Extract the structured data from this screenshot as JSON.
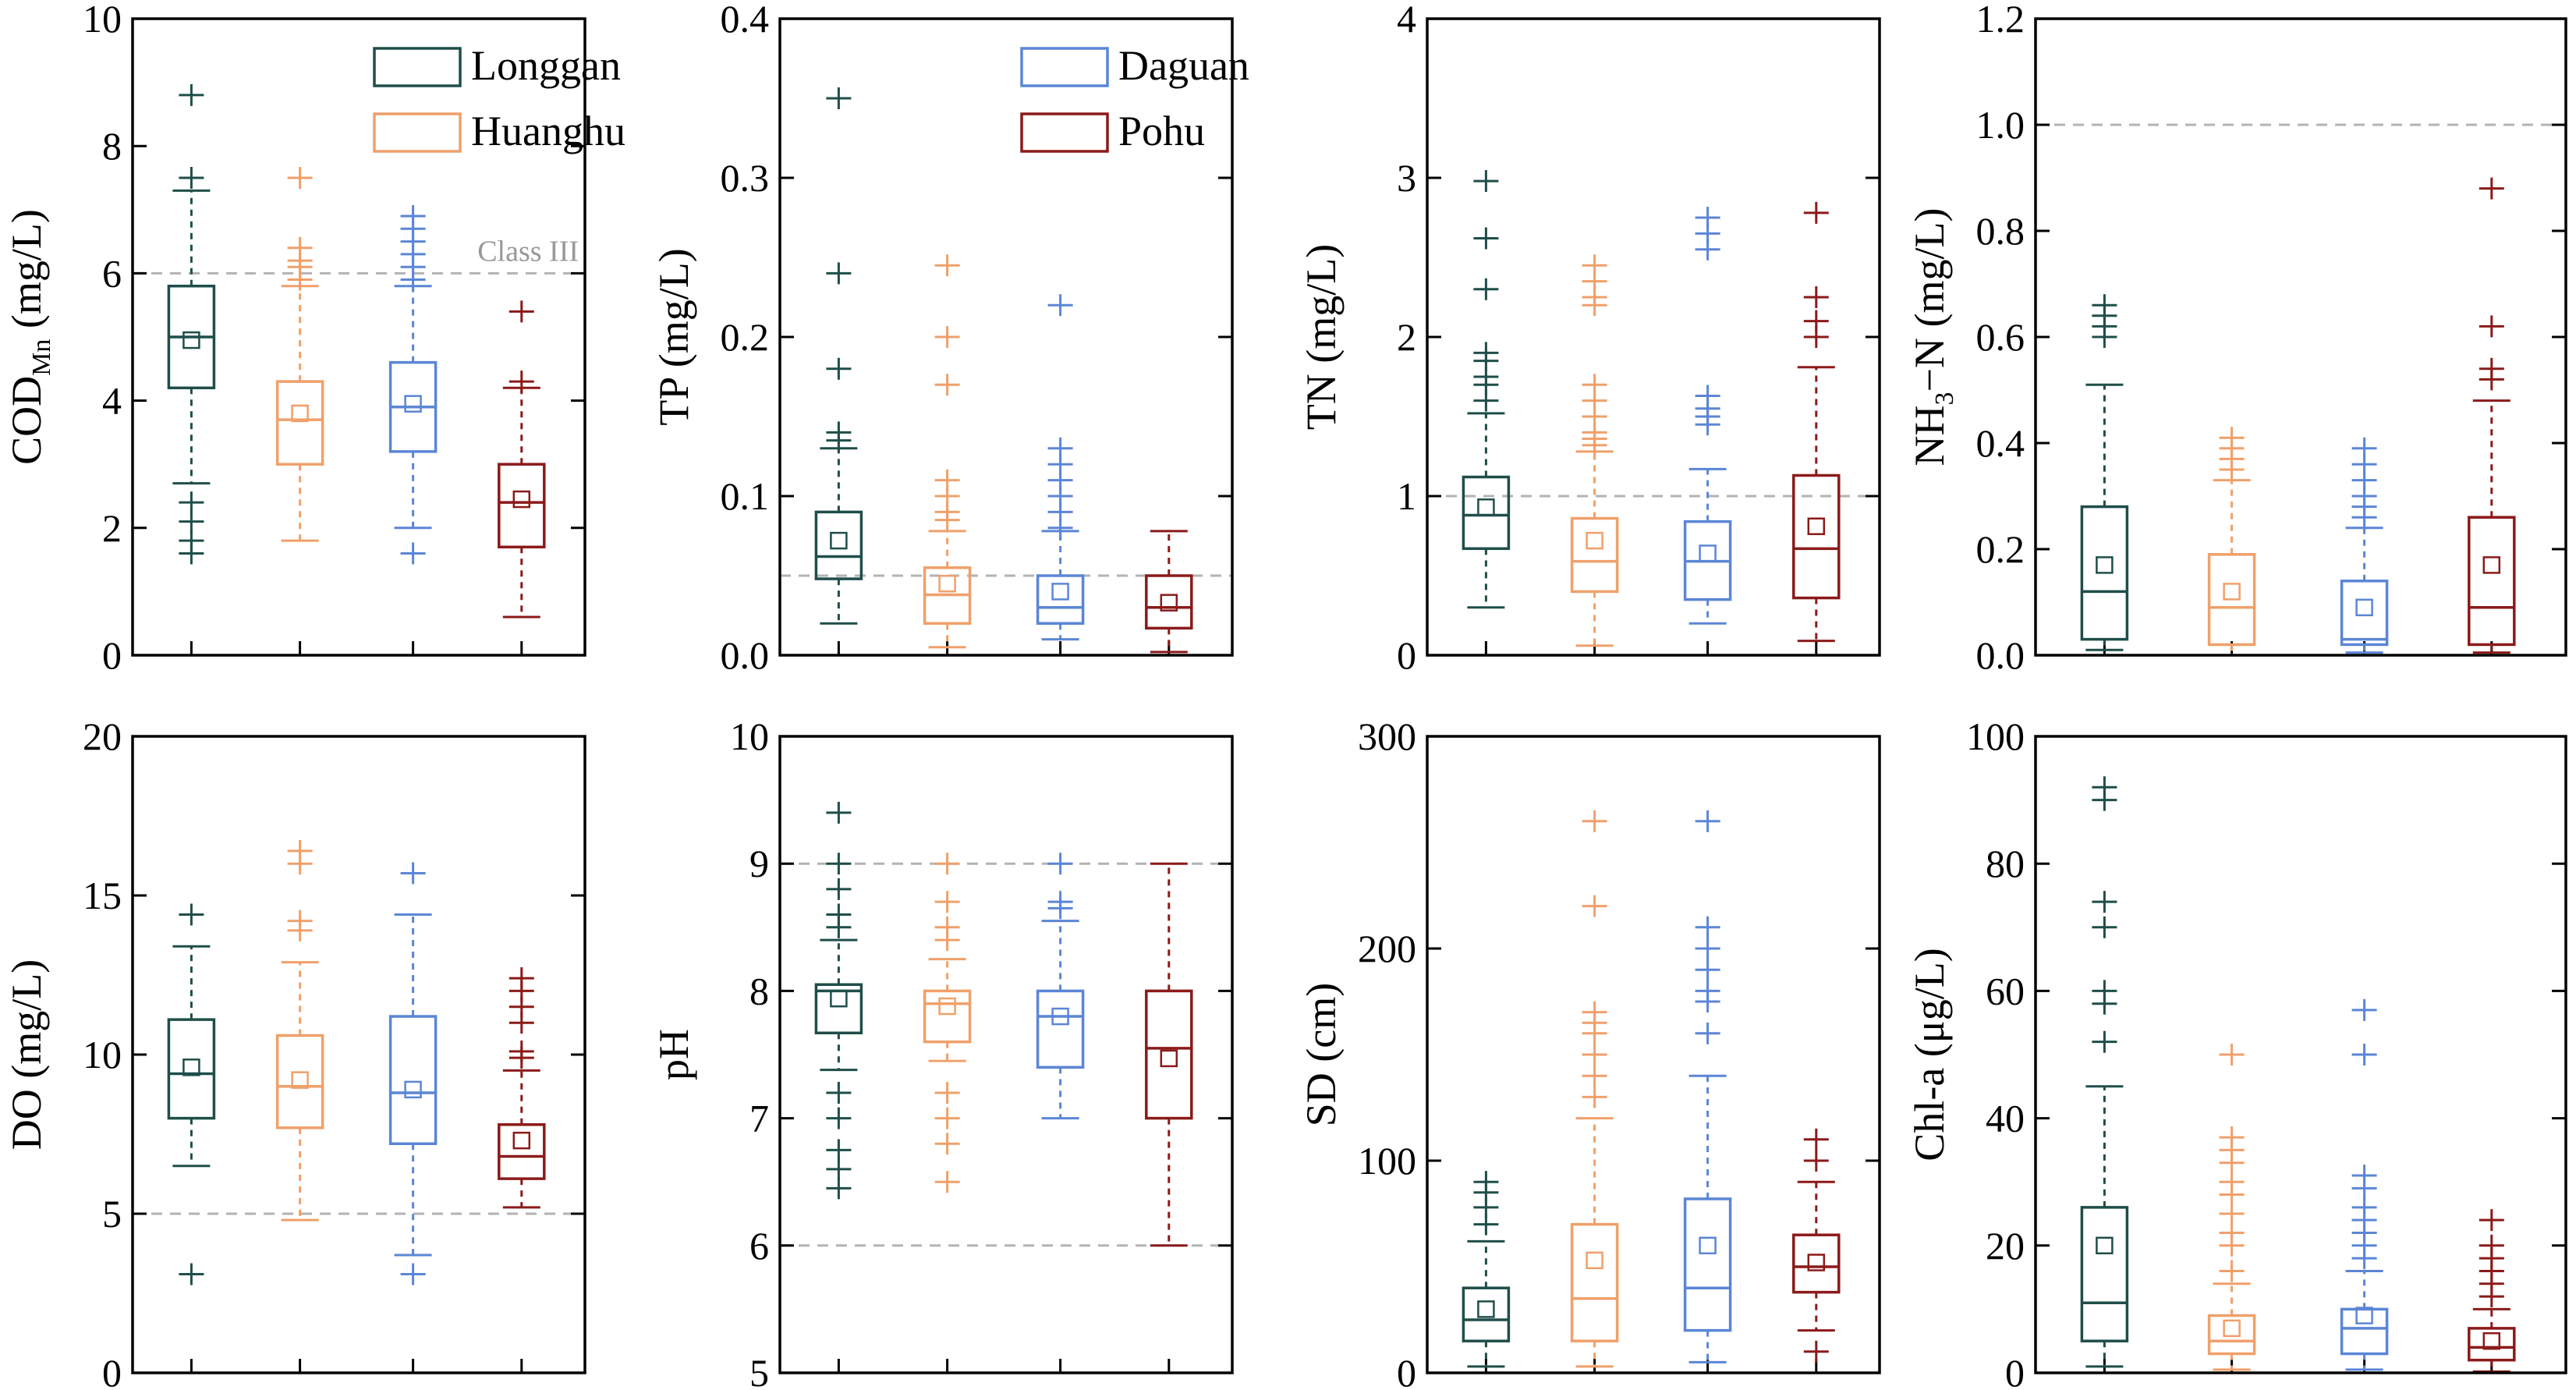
{
  "legend_items": [
    {
      "label": "Longgan",
      "color": "#1f4e4a"
    },
    {
      "label": "Huanghu",
      "color": "#f0a06a"
    },
    {
      "label": "Daguan",
      "color": "#5b86d6"
    },
    {
      "label": "Pohu",
      "color": "#8b1a1a"
    }
  ],
  "chart_data": [
    {
      "type": "box",
      "ylabel_main": "COD",
      "ylabel_sub": "Mn",
      "ylabel_tail": " (mg/L)",
      "ylim": [
        0,
        10
      ],
      "yticks": [
        0,
        2,
        4,
        6,
        8,
        10
      ],
      "tick_labels": [
        "0",
        "2",
        "4",
        "6",
        "8",
        "10"
      ],
      "threshold_lines": [
        6
      ],
      "threshold_label": "Class III",
      "legend": [
        0,
        1
      ],
      "series": [
        {
          "name": "Longgan",
          "q1": 4.2,
          "median": 5.0,
          "q3": 5.8,
          "mean": 4.95,
          "whisker_low": 2.7,
          "whisker_high": 7.3,
          "outliers": [
            1.6,
            1.8,
            2.1,
            2.4,
            7.5,
            8.8
          ]
        },
        {
          "name": "Huanghu",
          "q1": 3.0,
          "median": 3.7,
          "q3": 4.3,
          "mean": 3.8,
          "whisker_low": 1.8,
          "whisker_high": 5.8,
          "outliers": [
            5.9,
            6.1,
            6.2,
            6.4,
            7.5
          ]
        },
        {
          "name": "Daguan",
          "q1": 3.2,
          "median": 3.9,
          "q3": 4.6,
          "mean": 3.95,
          "whisker_low": 2.0,
          "whisker_high": 5.8,
          "outliers": [
            1.6,
            5.9,
            6.1,
            6.3,
            6.5,
            6.7,
            6.9
          ]
        },
        {
          "name": "Pohu",
          "q1": 1.7,
          "median": 2.4,
          "q3": 3.0,
          "mean": 2.45,
          "whisker_low": 0.6,
          "whisker_high": 4.2,
          "outliers": [
            4.3,
            5.4
          ]
        }
      ]
    },
    {
      "type": "box",
      "ylabel_main": "TP (mg/L)",
      "ylim": [
        0,
        0.4
      ],
      "yticks": [
        0,
        0.1,
        0.2,
        0.3,
        0.4
      ],
      "tick_labels": [
        "0.0",
        "0.1",
        "0.2",
        "0.3",
        "0.4"
      ],
      "threshold_lines": [
        0.05
      ],
      "legend": [
        2,
        3
      ],
      "series": [
        {
          "name": "Longgan",
          "q1": 0.048,
          "median": 0.062,
          "q3": 0.09,
          "mean": 0.072,
          "whisker_low": 0.02,
          "whisker_high": 0.13,
          "outliers": [
            0.135,
            0.14,
            0.18,
            0.24,
            0.35
          ]
        },
        {
          "name": "Huanghu",
          "q1": 0.02,
          "median": 0.038,
          "q3": 0.055,
          "mean": 0.045,
          "whisker_low": 0.005,
          "whisker_high": 0.078,
          "outliers": [
            0.085,
            0.09,
            0.1,
            0.11,
            0.17,
            0.2,
            0.245
          ]
        },
        {
          "name": "Daguan",
          "q1": 0.02,
          "median": 0.03,
          "q3": 0.05,
          "mean": 0.04,
          "whisker_low": 0.01,
          "whisker_high": 0.078,
          "outliers": [
            0.08,
            0.09,
            0.1,
            0.11,
            0.12,
            0.13,
            0.22
          ]
        },
        {
          "name": "Pohu",
          "q1": 0.017,
          "median": 0.03,
          "q3": 0.05,
          "mean": 0.033,
          "whisker_low": 0.002,
          "whisker_high": 0.078,
          "outliers": []
        }
      ]
    },
    {
      "type": "box",
      "ylabel_main": "TN (mg/L)",
      "ylim": [
        0,
        4
      ],
      "yticks": [
        0,
        1,
        2,
        3,
        4
      ],
      "tick_labels": [
        "0",
        "1",
        "2",
        "3",
        "4"
      ],
      "threshold_lines": [
        1
      ],
      "legend": [],
      "series": [
        {
          "name": "Longgan",
          "q1": 0.67,
          "median": 0.88,
          "q3": 1.12,
          "mean": 0.93,
          "whisker_low": 0.3,
          "whisker_high": 1.52,
          "outliers": [
            1.6,
            1.7,
            1.75,
            1.85,
            1.9,
            2.3,
            2.62,
            2.98
          ]
        },
        {
          "name": "Huanghu",
          "q1": 0.4,
          "median": 0.59,
          "q3": 0.86,
          "mean": 0.72,
          "whisker_low": 0.06,
          "whisker_high": 1.28,
          "outliers": [
            1.32,
            1.36,
            1.4,
            1.5,
            1.6,
            1.7,
            2.2,
            2.25,
            2.35,
            2.45
          ]
        },
        {
          "name": "Daguan",
          "q1": 0.35,
          "median": 0.59,
          "q3": 0.84,
          "mean": 0.64,
          "whisker_low": 0.2,
          "whisker_high": 1.17,
          "outliers": [
            1.45,
            1.5,
            1.55,
            1.63,
            2.55,
            2.65,
            2.75
          ]
        },
        {
          "name": "Pohu",
          "q1": 0.36,
          "median": 0.67,
          "q3": 1.13,
          "mean": 0.81,
          "whisker_low": 0.09,
          "whisker_high": 1.81,
          "outliers": [
            2.0,
            2.1,
            2.25,
            2.78
          ]
        }
      ]
    },
    {
      "type": "box",
      "ylabel_main": "NH",
      "ylabel_sub": "3",
      "ylabel_tail": "−N (mg/L)",
      "ylim": [
        0,
        1.2
      ],
      "yticks": [
        0,
        0.2,
        0.4,
        0.6,
        0.8,
        1.0,
        1.2
      ],
      "tick_labels": [
        "0.0",
        "0.2",
        "0.4",
        "0.6",
        "0.8",
        "1.0",
        "1.2"
      ],
      "threshold_lines": [
        1.0
      ],
      "legend": [],
      "series": [
        {
          "name": "Longgan",
          "q1": 0.03,
          "median": 0.12,
          "q3": 0.28,
          "mean": 0.17,
          "whisker_low": 0.01,
          "whisker_high": 0.51,
          "outliers": [
            0.6,
            0.62,
            0.64,
            0.66
          ]
        },
        {
          "name": "Huanghu",
          "q1": 0.02,
          "median": 0.09,
          "q3": 0.19,
          "mean": 0.12,
          "whisker_low": 0.0,
          "whisker_high": 0.33,
          "outliers": [
            0.35,
            0.37,
            0.39,
            0.41
          ]
        },
        {
          "name": "Daguan",
          "q1": 0.02,
          "median": 0.03,
          "q3": 0.14,
          "mean": 0.09,
          "whisker_low": 0.005,
          "whisker_high": 0.24,
          "outliers": [
            0.26,
            0.28,
            0.3,
            0.33,
            0.36,
            0.39
          ]
        },
        {
          "name": "Pohu",
          "q1": 0.02,
          "median": 0.09,
          "q3": 0.26,
          "mean": 0.17,
          "whisker_low": 0.005,
          "whisker_high": 0.48,
          "outliers": [
            0.52,
            0.54,
            0.62,
            0.88
          ]
        }
      ]
    },
    {
      "type": "box",
      "ylabel_main": "DO (mg/L)",
      "ylim": [
        0,
        20
      ],
      "yticks": [
        0,
        5,
        10,
        15,
        20
      ],
      "tick_labels": [
        "0",
        "5",
        "10",
        "15",
        "20"
      ],
      "threshold_lines": [
        5
      ],
      "legend": [],
      "series": [
        {
          "name": "Longgan",
          "q1": 8.0,
          "median": 9.4,
          "q3": 11.1,
          "mean": 9.6,
          "whisker_low": 6.5,
          "whisker_high": 13.4,
          "outliers": [
            3.1,
            14.4
          ]
        },
        {
          "name": "Huanghu",
          "q1": 7.7,
          "median": 9.0,
          "q3": 10.6,
          "mean": 9.2,
          "whisker_low": 4.8,
          "whisker_high": 12.9,
          "outliers": [
            13.9,
            14.2,
            16.0,
            16.4
          ]
        },
        {
          "name": "Daguan",
          "q1": 7.2,
          "median": 8.8,
          "q3": 11.2,
          "mean": 8.9,
          "whisker_low": 3.7,
          "whisker_high": 14.4,
          "outliers": [
            3.1,
            15.7
          ]
        },
        {
          "name": "Pohu",
          "q1": 6.1,
          "median": 6.8,
          "q3": 7.8,
          "mean": 7.3,
          "whisker_low": 5.2,
          "whisker_high": 9.5,
          "outliers": [
            9.9,
            10.1,
            11.0,
            11.5,
            12.0,
            12.4
          ]
        }
      ]
    },
    {
      "type": "box",
      "ylabel_main": "pH",
      "ylim": [
        5,
        10
      ],
      "yticks": [
        5,
        6,
        7,
        8,
        9,
        10
      ],
      "tick_labels": [
        "5",
        "6",
        "7",
        "8",
        "9",
        "10"
      ],
      "threshold_lines": [
        6,
        9
      ],
      "legend": [],
      "series": [
        {
          "name": "Longgan",
          "q1": 7.67,
          "median": 8.0,
          "q3": 8.05,
          "mean": 7.94,
          "whisker_low": 7.38,
          "whisker_high": 8.4,
          "outliers": [
            6.45,
            6.6,
            6.75,
            7.0,
            7.2,
            8.5,
            8.6,
            8.8,
            9.0,
            9.4
          ]
        },
        {
          "name": "Huanghu",
          "q1": 7.6,
          "median": 7.9,
          "q3": 8.0,
          "mean": 7.88,
          "whisker_low": 7.45,
          "whisker_high": 8.25,
          "outliers": [
            6.5,
            6.8,
            7.0,
            7.2,
            8.4,
            8.5,
            8.7,
            9.0
          ]
        },
        {
          "name": "Daguan",
          "q1": 7.4,
          "median": 7.8,
          "q3": 8.0,
          "mean": 7.8,
          "whisker_low": 7.0,
          "whisker_high": 8.55,
          "outliers": [
            8.65,
            8.7,
            9.0
          ]
        },
        {
          "name": "Pohu",
          "q1": 7.0,
          "median": 7.55,
          "q3": 8.0,
          "mean": 7.47,
          "whisker_low": 6.0,
          "whisker_high": 9.0,
          "outliers": []
        }
      ]
    },
    {
      "type": "box",
      "ylabel_main": "SD (cm)",
      "ylim": [
        0,
        300
      ],
      "yticks": [
        0,
        100,
        200,
        300
      ],
      "tick_labels": [
        "0",
        "100",
        "200",
        "300"
      ],
      "threshold_lines": [],
      "legend": [],
      "series": [
        {
          "name": "Longgan",
          "q1": 15,
          "median": 25,
          "q3": 40,
          "mean": 30,
          "whisker_low": 3,
          "whisker_high": 62,
          "outliers": [
            70,
            78,
            85,
            90
          ]
        },
        {
          "name": "Huanghu",
          "q1": 15,
          "median": 35,
          "q3": 70,
          "mean": 53,
          "whisker_low": 3,
          "whisker_high": 120,
          "outliers": [
            130,
            140,
            150,
            160,
            165,
            170,
            220,
            260
          ]
        },
        {
          "name": "Daguan",
          "q1": 20,
          "median": 40,
          "q3": 82,
          "mean": 60,
          "whisker_low": 5,
          "whisker_high": 140,
          "outliers": [
            160,
            175,
            180,
            190,
            200,
            210,
            260
          ]
        },
        {
          "name": "Pohu",
          "q1": 38,
          "median": 50,
          "q3": 65,
          "mean": 52,
          "whisker_low": 20,
          "whisker_high": 90,
          "outliers": [
            10,
            100,
            110
          ]
        }
      ]
    },
    {
      "type": "box",
      "ylabel_main": "Chl-a (μg/L)",
      "ylim": [
        0,
        100
      ],
      "yticks": [
        0,
        20,
        40,
        60,
        80,
        100
      ],
      "tick_labels": [
        "0",
        "20",
        "40",
        "60",
        "80",
        "100"
      ],
      "threshold_lines": [],
      "legend": [],
      "series": [
        {
          "name": "Longgan",
          "q1": 5,
          "median": 11,
          "q3": 26,
          "mean": 20,
          "whisker_low": 1,
          "whisker_high": 45,
          "outliers": [
            52,
            58,
            60,
            70,
            74,
            90,
            92
          ]
        },
        {
          "name": "Huanghu",
          "q1": 3,
          "median": 5,
          "q3": 9,
          "mean": 7,
          "whisker_low": 0.5,
          "whisker_high": 14,
          "outliers": [
            16,
            20,
            22,
            25,
            28,
            30,
            33,
            35,
            37,
            50
          ]
        },
        {
          "name": "Daguan",
          "q1": 3,
          "median": 7,
          "q3": 10,
          "mean": 9,
          "whisker_low": 0.5,
          "whisker_high": 16,
          "outliers": [
            18,
            20,
            22,
            24,
            26,
            29,
            31,
            50,
            57
          ]
        },
        {
          "name": "Pohu",
          "q1": 2,
          "median": 4,
          "q3": 7,
          "mean": 5,
          "whisker_low": 0.2,
          "whisker_high": 10,
          "outliers": [
            12,
            14,
            16,
            18,
            20,
            24
          ]
        }
      ]
    }
  ]
}
